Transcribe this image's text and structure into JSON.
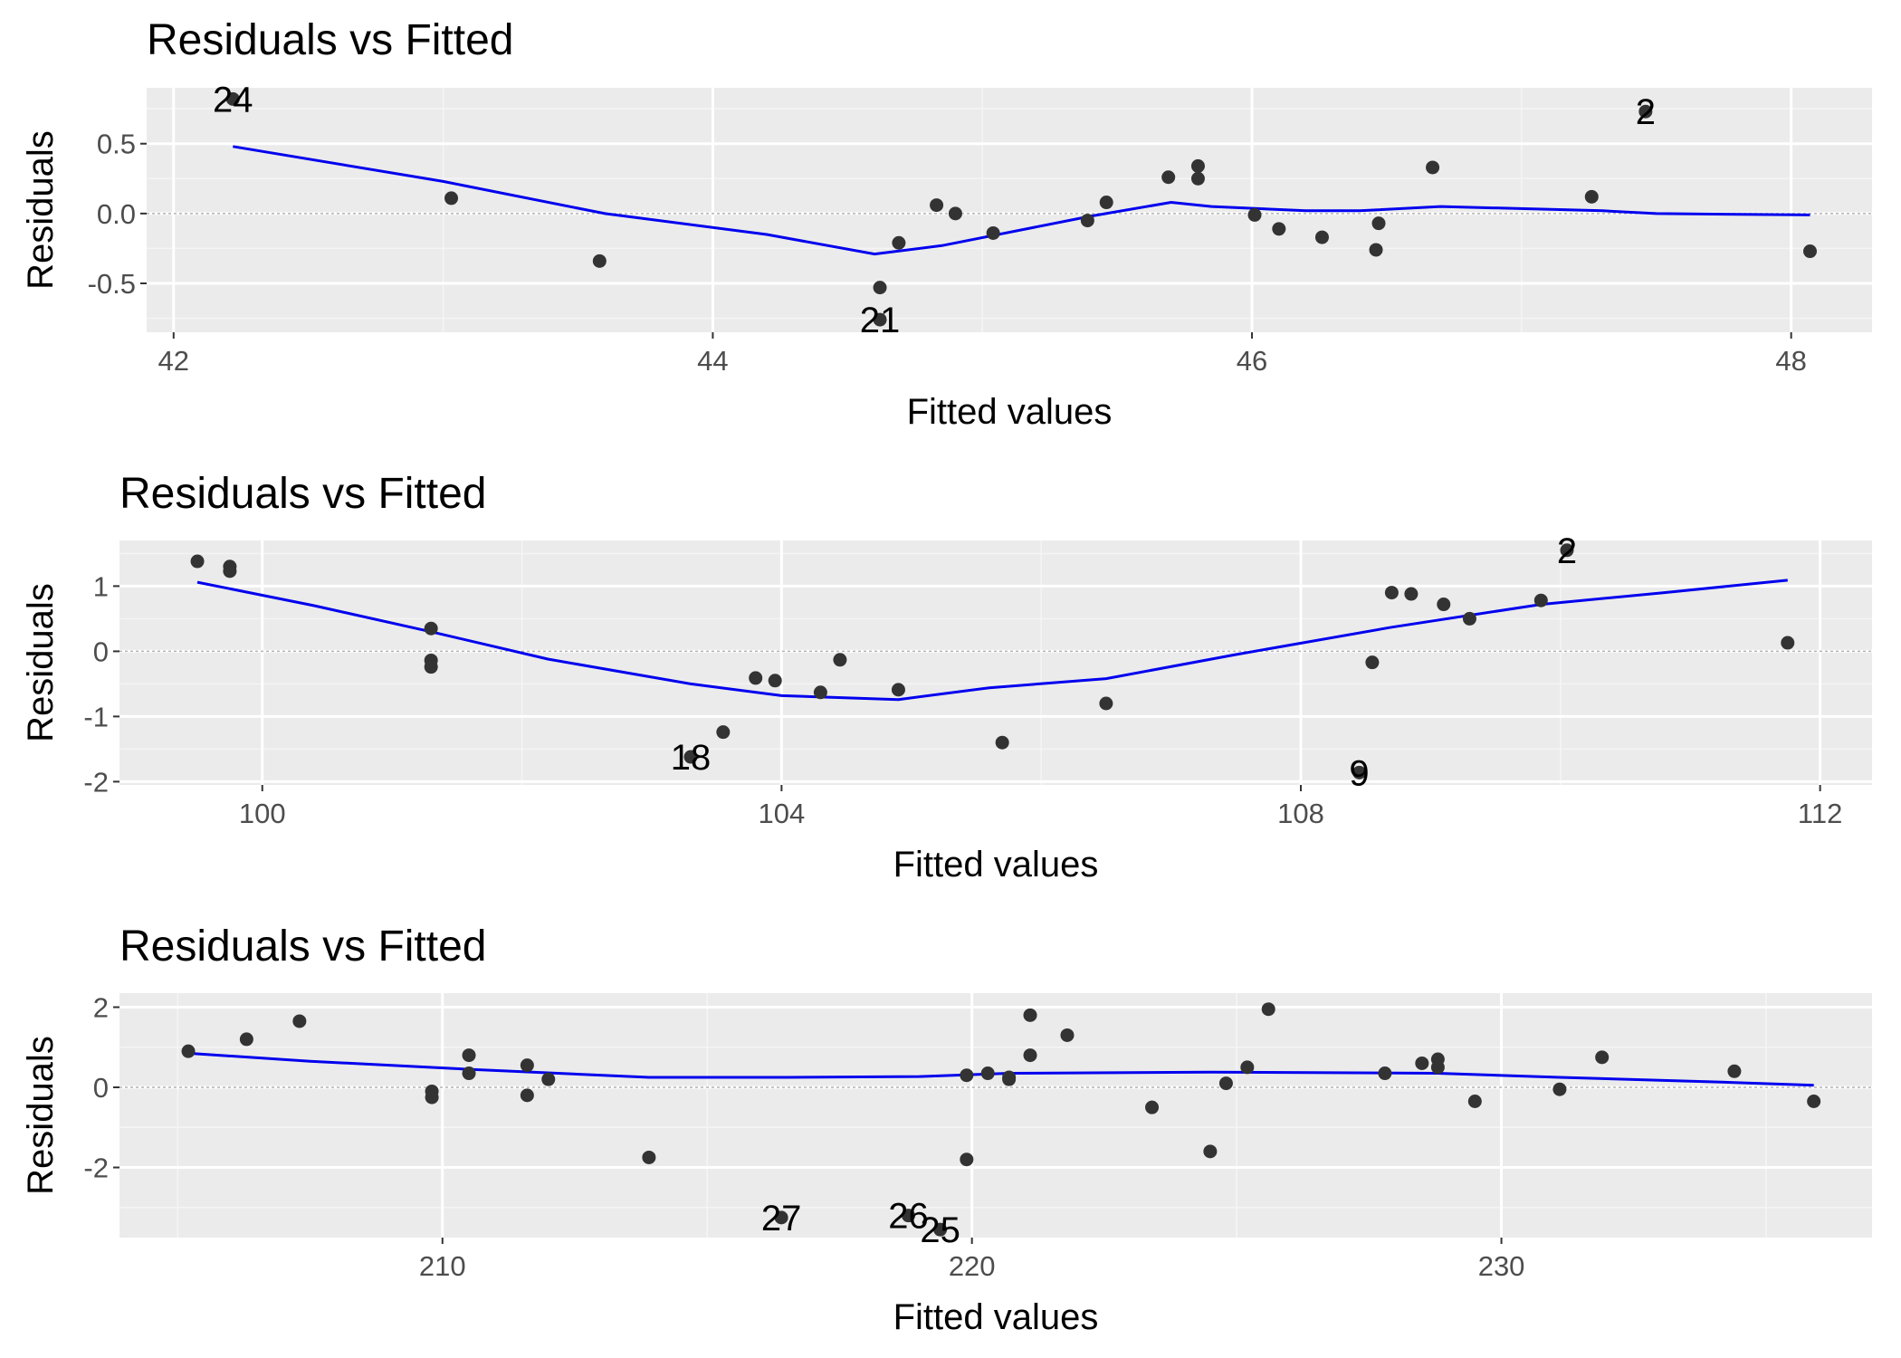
{
  "colors": {
    "panel_bg": "#ebebeb",
    "grid_major": "#ffffff",
    "grid_minor": "#f5f5f5",
    "point": "#333333",
    "smooth": "#0000ee",
    "zero_line": "#b3b3b3",
    "tick_text": "#4d4d4d"
  },
  "chart_data": [
    {
      "type": "scatter",
      "title": "Residuals vs Fitted",
      "xlabel": "Fitted values",
      "ylabel": "Residuals",
      "xlim": [
        41.9,
        48.3
      ],
      "ylim": [
        -0.85,
        0.9
      ],
      "xticks": [
        42,
        44,
        46,
        48
      ],
      "xtick_labels": [
        "42",
        "44",
        "46",
        "48"
      ],
      "yticks": [
        -0.5,
        0,
        0.5
      ],
      "ytick_labels": [
        "-0.5",
        "0.0",
        "0.5"
      ],
      "grid": true,
      "reference_line": 0,
      "points": [
        {
          "x": 42.22,
          "y": 0.82,
          "label": "24"
        },
        {
          "x": 43.03,
          "y": 0.11
        },
        {
          "x": 43.58,
          "y": -0.34
        },
        {
          "x": 44.62,
          "y": -0.53
        },
        {
          "x": 44.62,
          "y": -0.76,
          "label": "21"
        },
        {
          "x": 44.69,
          "y": -0.21
        },
        {
          "x": 44.83,
          "y": 0.06
        },
        {
          "x": 44.9,
          "y": 0.0
        },
        {
          "x": 45.04,
          "y": -0.14
        },
        {
          "x": 45.39,
          "y": -0.05
        },
        {
          "x": 45.46,
          "y": 0.08
        },
        {
          "x": 45.69,
          "y": 0.26
        },
        {
          "x": 45.8,
          "y": 0.34
        },
        {
          "x": 45.8,
          "y": 0.25
        },
        {
          "x": 46.01,
          "y": -0.01
        },
        {
          "x": 46.1,
          "y": -0.11
        },
        {
          "x": 46.26,
          "y": -0.17
        },
        {
          "x": 46.46,
          "y": -0.26
        },
        {
          "x": 46.47,
          "y": -0.07
        },
        {
          "x": 46.67,
          "y": 0.33
        },
        {
          "x": 47.26,
          "y": 0.12
        },
        {
          "x": 47.46,
          "y": 0.73,
          "label": "2"
        },
        {
          "x": 48.07,
          "y": -0.27
        }
      ],
      "smooth": [
        {
          "x": 42.22,
          "y": 0.48
        },
        {
          "x": 43.0,
          "y": 0.23
        },
        {
          "x": 43.6,
          "y": 0.0
        },
        {
          "x": 44.2,
          "y": -0.15
        },
        {
          "x": 44.6,
          "y": -0.29
        },
        {
          "x": 44.85,
          "y": -0.23
        },
        {
          "x": 45.4,
          "y": -0.02
        },
        {
          "x": 45.7,
          "y": 0.08
        },
        {
          "x": 45.85,
          "y": 0.05
        },
        {
          "x": 46.2,
          "y": 0.02
        },
        {
          "x": 46.4,
          "y": 0.02
        },
        {
          "x": 46.7,
          "y": 0.05
        },
        {
          "x": 47.3,
          "y": 0.02
        },
        {
          "x": 47.5,
          "y": 0.0
        },
        {
          "x": 48.07,
          "y": -0.01
        }
      ]
    },
    {
      "type": "scatter",
      "title": "Residuals vs Fitted",
      "xlabel": "Fitted values",
      "ylabel": "Residuals",
      "xlim": [
        98.9,
        112.4
      ],
      "ylim": [
        -2.05,
        1.7
      ],
      "xticks": [
        100,
        104,
        108,
        112
      ],
      "xtick_labels": [
        "100",
        "104",
        "108",
        "112"
      ],
      "yticks": [
        -2,
        -1,
        0,
        1
      ],
      "ytick_labels": [
        "-2",
        "-1",
        "0",
        "1"
      ],
      "grid": true,
      "reference_line": 0,
      "points": [
        {
          "x": 99.5,
          "y": 1.38
        },
        {
          "x": 99.75,
          "y": 1.3
        },
        {
          "x": 99.75,
          "y": 1.23
        },
        {
          "x": 101.3,
          "y": 0.35
        },
        {
          "x": 101.3,
          "y": -0.14
        },
        {
          "x": 101.3,
          "y": -0.24
        },
        {
          "x": 103.3,
          "y": -1.62,
          "label": "18"
        },
        {
          "x": 103.55,
          "y": -1.24
        },
        {
          "x": 103.8,
          "y": -0.41
        },
        {
          "x": 103.95,
          "y": -0.45
        },
        {
          "x": 104.3,
          "y": -0.63
        },
        {
          "x": 104.45,
          "y": -0.13
        },
        {
          "x": 104.9,
          "y": -0.59
        },
        {
          "x": 105.7,
          "y": -1.4
        },
        {
          "x": 106.5,
          "y": -0.8
        },
        {
          "x": 108.45,
          "y": -1.86,
          "label": "9"
        },
        {
          "x": 108.55,
          "y": -0.17
        },
        {
          "x": 108.7,
          "y": 0.9
        },
        {
          "x": 108.85,
          "y": 0.88
        },
        {
          "x": 109.1,
          "y": 0.72
        },
        {
          "x": 109.3,
          "y": 0.5
        },
        {
          "x": 109.85,
          "y": 0.78
        },
        {
          "x": 110.05,
          "y": 1.55,
          "label": "2"
        },
        {
          "x": 111.75,
          "y": 0.13
        }
      ],
      "smooth": [
        {
          "x": 99.5,
          "y": 1.06
        },
        {
          "x": 100.4,
          "y": 0.7
        },
        {
          "x": 101.3,
          "y": 0.3
        },
        {
          "x": 102.2,
          "y": -0.12
        },
        {
          "x": 103.3,
          "y": -0.5
        },
        {
          "x": 104.0,
          "y": -0.68
        },
        {
          "x": 104.9,
          "y": -0.74
        },
        {
          "x": 105.6,
          "y": -0.56
        },
        {
          "x": 106.5,
          "y": -0.42
        },
        {
          "x": 107.5,
          "y": -0.05
        },
        {
          "x": 108.7,
          "y": 0.37
        },
        {
          "x": 109.85,
          "y": 0.72
        },
        {
          "x": 110.8,
          "y": 0.9
        },
        {
          "x": 111.75,
          "y": 1.09
        }
      ]
    },
    {
      "type": "scatter",
      "title": "Residuals vs Fitted",
      "xlabel": "Fitted values",
      "ylabel": "Residuals",
      "xlim": [
        203.9,
        237.0
      ],
      "ylim": [
        -3.75,
        2.35
      ],
      "xticks": [
        210,
        220,
        230
      ],
      "xtick_labels": [
        "210",
        "220",
        "230"
      ],
      "yticks": [
        -2,
        0,
        2
      ],
      "ytick_labels": [
        "-2",
        "0",
        "2"
      ],
      "grid": true,
      "reference_line": 0,
      "points": [
        {
          "x": 205.2,
          "y": 0.9
        },
        {
          "x": 206.3,
          "y": 1.2
        },
        {
          "x": 207.3,
          "y": 1.65
        },
        {
          "x": 209.8,
          "y": -0.1
        },
        {
          "x": 209.8,
          "y": -0.25
        },
        {
          "x": 210.5,
          "y": 0.8
        },
        {
          "x": 210.5,
          "y": 0.35
        },
        {
          "x": 211.6,
          "y": 0.55
        },
        {
          "x": 211.6,
          "y": -0.2
        },
        {
          "x": 212.0,
          "y": 0.2
        },
        {
          "x": 213.9,
          "y": -1.75
        },
        {
          "x": 216.4,
          "y": -3.25,
          "label": "27"
        },
        {
          "x": 218.8,
          "y": -3.2,
          "label": "26"
        },
        {
          "x": 219.4,
          "y": -3.55,
          "label": "25"
        },
        {
          "x": 219.9,
          "y": -1.8
        },
        {
          "x": 219.9,
          "y": 0.3
        },
        {
          "x": 220.3,
          "y": 0.35
        },
        {
          "x": 220.7,
          "y": 0.25
        },
        {
          "x": 220.7,
          "y": 0.2
        },
        {
          "x": 221.1,
          "y": 1.8
        },
        {
          "x": 221.1,
          "y": 0.8
        },
        {
          "x": 221.8,
          "y": 1.3
        },
        {
          "x": 223.4,
          "y": -0.5
        },
        {
          "x": 224.5,
          "y": -1.6
        },
        {
          "x": 224.8,
          "y": 0.1
        },
        {
          "x": 225.2,
          "y": 0.5
        },
        {
          "x": 225.6,
          "y": 1.95
        },
        {
          "x": 227.8,
          "y": 0.35
        },
        {
          "x": 228.5,
          "y": 0.6
        },
        {
          "x": 228.8,
          "y": 0.5
        },
        {
          "x": 228.8,
          "y": 0.7
        },
        {
          "x": 229.5,
          "y": -0.35
        },
        {
          "x": 231.1,
          "y": -0.05
        },
        {
          "x": 231.9,
          "y": 0.75
        },
        {
          "x": 234.4,
          "y": 0.4
        },
        {
          "x": 235.9,
          "y": -0.35
        }
      ],
      "smooth": [
        {
          "x": 205.2,
          "y": 0.85
        },
        {
          "x": 207.5,
          "y": 0.65
        },
        {
          "x": 210.5,
          "y": 0.45
        },
        {
          "x": 213.9,
          "y": 0.25
        },
        {
          "x": 216.5,
          "y": 0.25
        },
        {
          "x": 219.0,
          "y": 0.27
        },
        {
          "x": 220.7,
          "y": 0.35
        },
        {
          "x": 224.5,
          "y": 0.38
        },
        {
          "x": 228.8,
          "y": 0.35
        },
        {
          "x": 231.1,
          "y": 0.25
        },
        {
          "x": 234.4,
          "y": 0.12
        },
        {
          "x": 235.9,
          "y": 0.05
        }
      ]
    }
  ]
}
